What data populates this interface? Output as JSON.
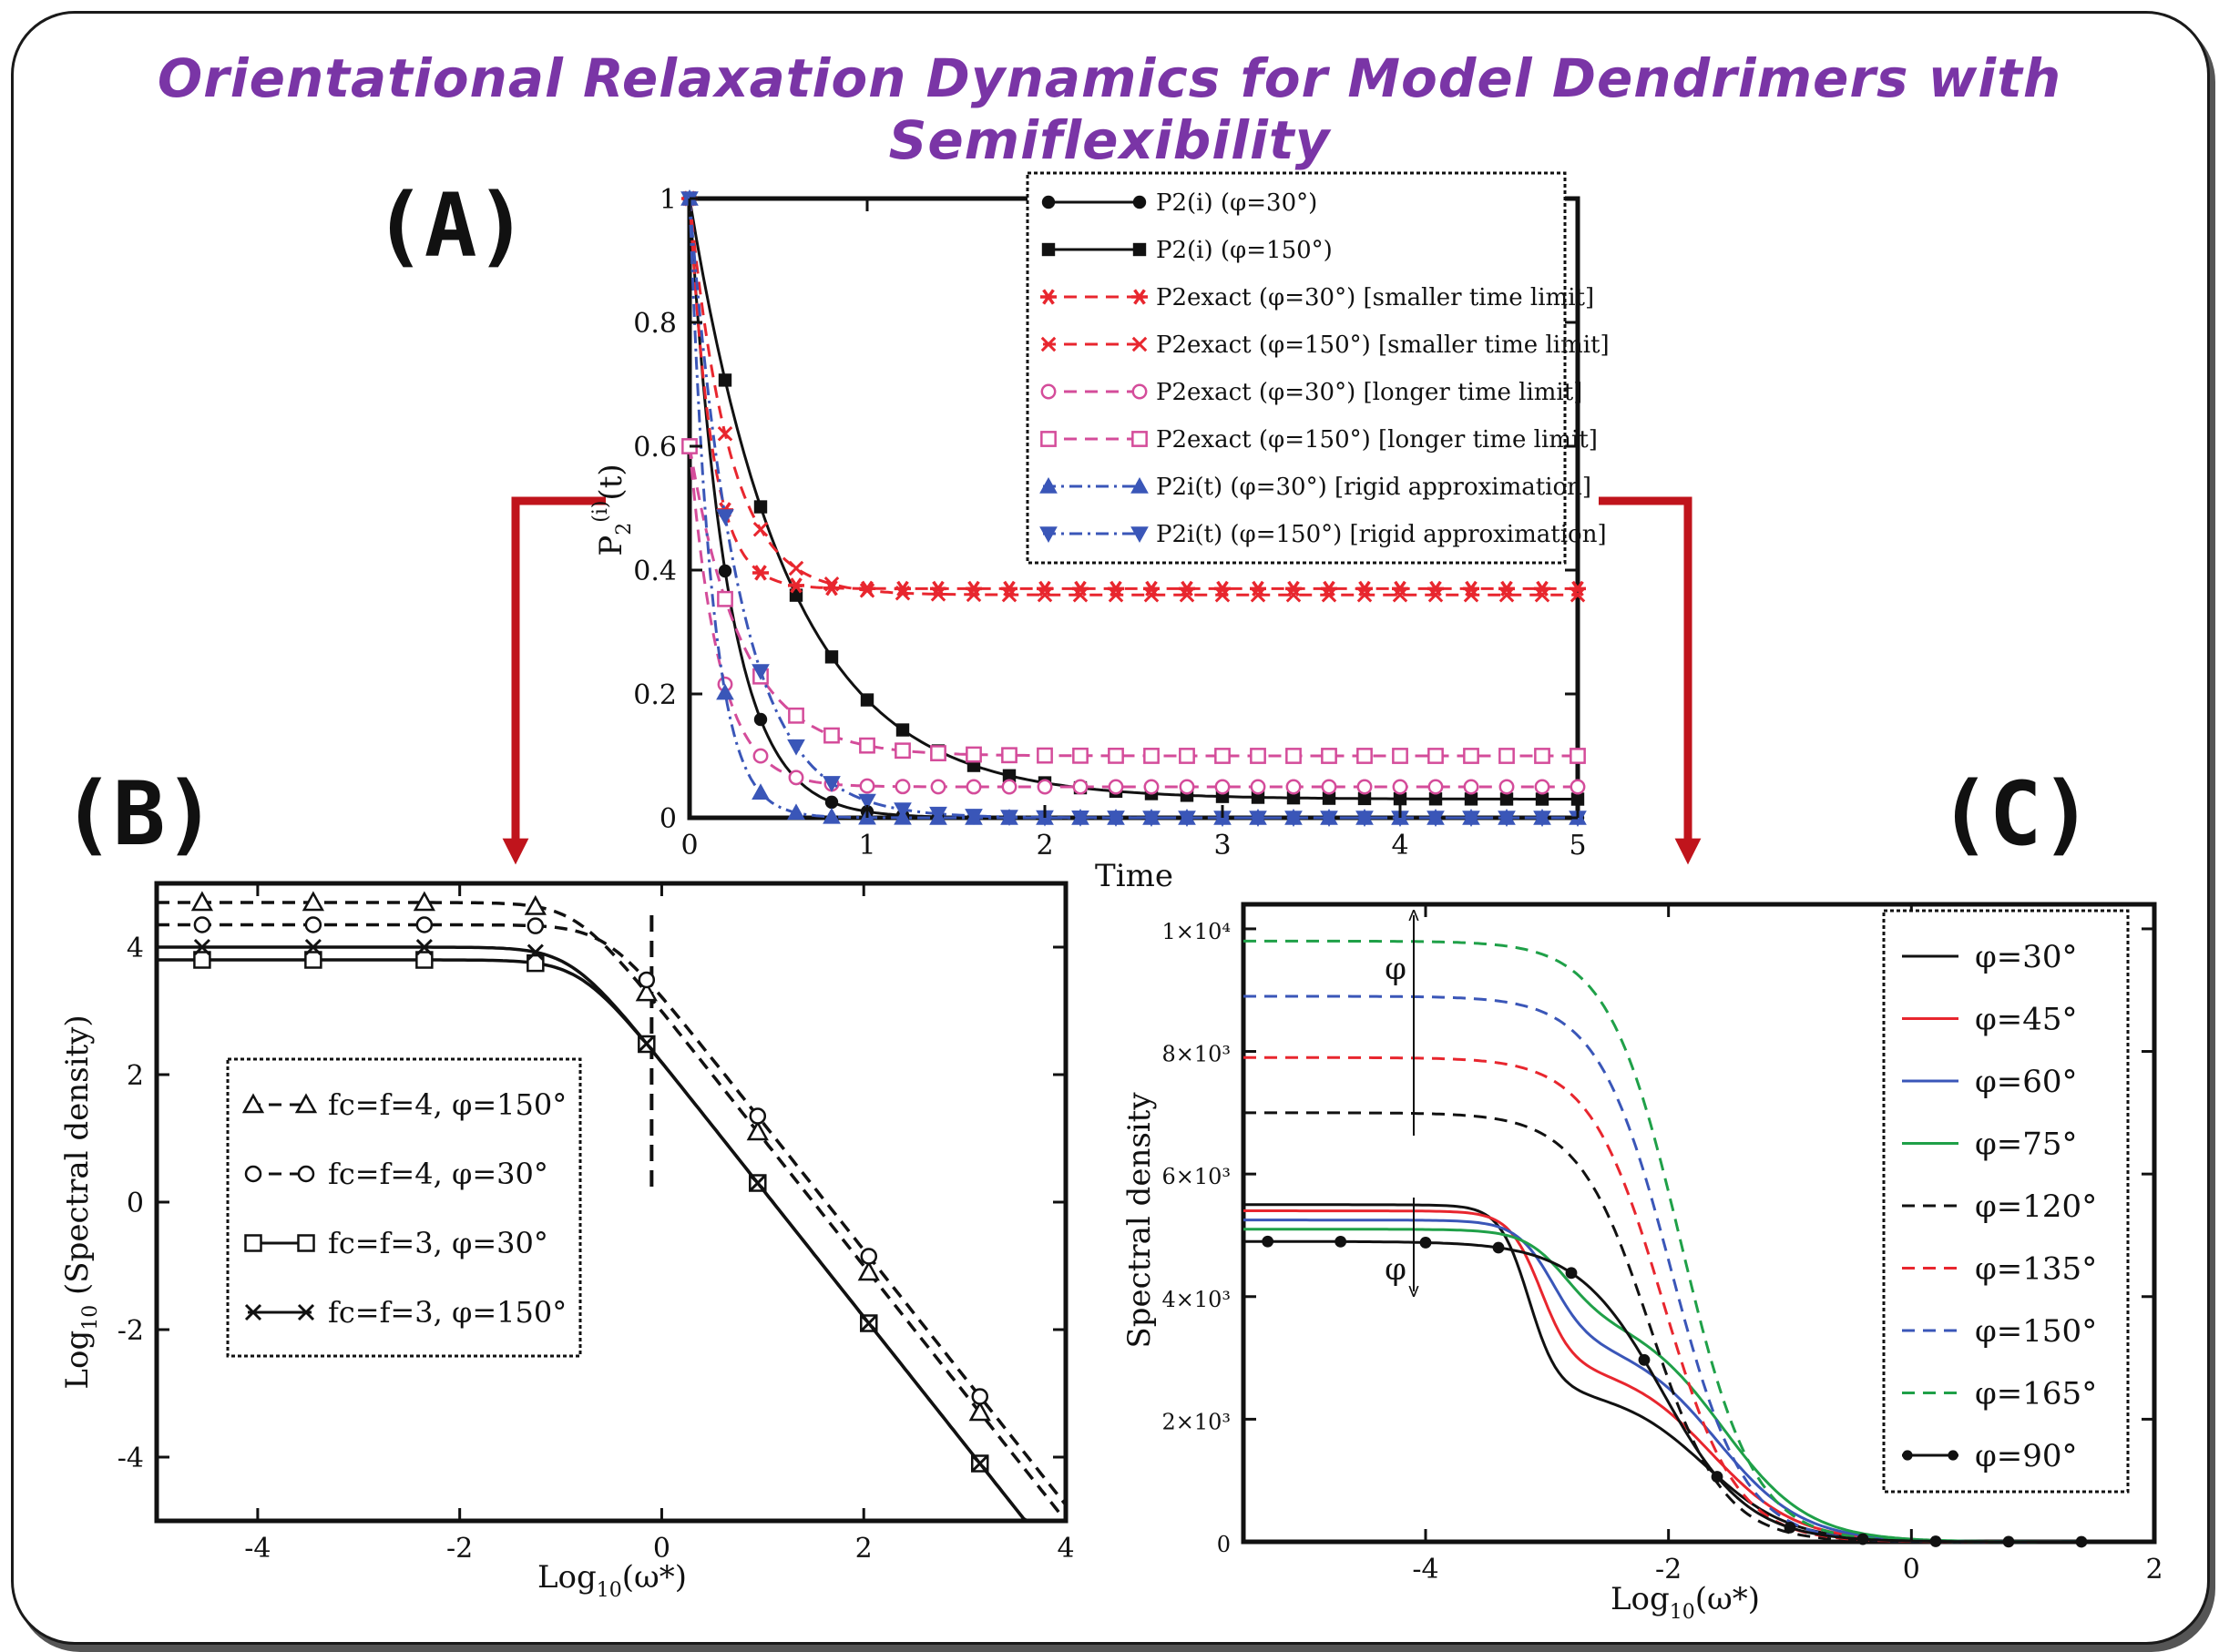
{
  "page_title": "Orientational Relaxation Dynamics for Model Dendrimers with Semiflexibility",
  "labels": {
    "a": "(A)",
    "b": "(B)",
    "c": "(C)"
  },
  "colors": {
    "title": "#7a35a6",
    "arrow": "#c0141c",
    "black": "#111111",
    "red": "#e8262e",
    "pink": "#d44c9a",
    "blue": "#3a56b8",
    "green": "#1fa048"
  },
  "chart_data": [
    {
      "id": "A",
      "type": "line",
      "xlabel": "Time",
      "ylabel": "P2(i)(t)",
      "xlim": [
        0,
        5
      ],
      "ylim": [
        0,
        1
      ],
      "xticks": [
        "0",
        "1",
        "2",
        "3",
        "4",
        "5"
      ],
      "yticks": [
        "0",
        "0.2",
        "0.4",
        "0.6",
        "0.8",
        "1"
      ],
      "series": [
        {
          "name": "P2(i) (φ=30°)",
          "model": "exp",
          "a": 1.0,
          "k": 4.6,
          "c": 0.0,
          "x0": 0.0,
          "color": "black",
          "dash": "solid",
          "marker": "circle"
        },
        {
          "name": "P2(i) (φ=150°)",
          "model": "exp",
          "a": 0.97,
          "k": 1.8,
          "c": 0.03,
          "x0": 0.0,
          "color": "black",
          "dash": "solid",
          "marker": "square"
        },
        {
          "name": "P2exact (φ=30°) [smaller time limit]",
          "model": "exp",
          "a": 0.63,
          "k": 8.0,
          "c": 0.37,
          "x0": 0.0,
          "color": "red",
          "dash": "dash",
          "marker": "asterisk"
        },
        {
          "name": "P2exact (φ=150°) [smaller time limit]",
          "model": "exp",
          "a": 0.64,
          "k": 4.5,
          "c": 0.36,
          "x0": 0.0,
          "color": "red",
          "dash": "dash",
          "marker": "cross"
        },
        {
          "name": "P2exact (φ=30°) [longer time limit]",
          "model": "exp",
          "a": 0.55,
          "k": 6.0,
          "c": 0.05,
          "x0": 0.0,
          "color": "pink",
          "dash": "dash",
          "marker": "circle-open"
        },
        {
          "name": "P2exact (φ=150°) [longer time limit]",
          "model": "exp",
          "a": 0.5,
          "k": 3.4,
          "c": 0.1,
          "x0": 0.0,
          "color": "pink",
          "dash": "dash",
          "marker": "square-open"
        },
        {
          "name": "P2i(t) (φ=30°) [rigid approximation]",
          "model": "exp",
          "a": 1.0,
          "k": 8.0,
          "c": 0.0,
          "x0": 0.0,
          "color": "blue",
          "dash": "dashdot",
          "marker": "tri-up"
        },
        {
          "name": "P2i(t) (φ=150°) [rigid approximation]",
          "model": "exp",
          "a": 1.0,
          "k": 3.6,
          "c": 0.0,
          "x0": 0.0,
          "color": "blue",
          "dash": "dashdot",
          "marker": "tri-down"
        }
      ]
    },
    {
      "id": "B",
      "type": "line",
      "xlabel": "Log10(ω*)",
      "ylabel": "Log10 (Spectral density)",
      "xlim": [
        -5,
        4
      ],
      "ylim": [
        -5,
        5
      ],
      "xticks": [
        "-4",
        "-2",
        "0",
        "2",
        "4"
      ],
      "yticks": [
        "-4",
        "-2",
        "0",
        "2",
        "4"
      ],
      "vline": -0.1,
      "series": [
        {
          "name": "fc=f=4, φ=150°",
          "model": "lorentz",
          "a": 4.7,
          "x0": -0.85,
          "color": "black",
          "dash": "dash",
          "marker": "tri-open"
        },
        {
          "name": "fc=f=4, φ=30°",
          "model": "lorentz",
          "a": 4.35,
          "x0": -0.55,
          "color": "black",
          "dash": "dash",
          "marker": "circle-open"
        },
        {
          "name": "fc=f=3, φ=30°",
          "model": "lorentz",
          "a": 3.8,
          "x0": -0.8,
          "color": "black",
          "dash": "solid",
          "marker": "square-open"
        },
        {
          "name": "fc=f=3, φ=150°",
          "model": "lorentz",
          "a": 4.0,
          "x0": -0.9,
          "color": "black",
          "dash": "solid",
          "marker": "cross"
        }
      ]
    },
    {
      "id": "C",
      "type": "line",
      "xlabel": "Log10(ω*)",
      "ylabel": "Spectral density",
      "xlim": [
        -5.5,
        2
      ],
      "ylim": [
        0,
        10400
      ],
      "xticks": [
        "-4",
        "-2",
        "0",
        "2"
      ],
      "yticks": [
        "0",
        "2×10³",
        "4×10³",
        "6×10³",
        "8×10³",
        "1×10⁴"
      ],
      "annotation": "φ",
      "series": [
        {
          "name": "φ=30°",
          "model": "twostep",
          "a": 5500,
          "b": 2500,
          "x1": -3.15,
          "x2": -1.7,
          "s1": 0.12,
          "s2": 0.35,
          "color": "black",
          "dash": "solid",
          "marker": "none"
        },
        {
          "name": "φ=45°",
          "model": "twostep",
          "a": 5400,
          "b": 2900,
          "x1": -3.05,
          "x2": -1.65,
          "s1": 0.13,
          "s2": 0.35,
          "color": "red",
          "dash": "solid",
          "marker": "none"
        },
        {
          "name": "φ=60°",
          "model": "twostep",
          "a": 5250,
          "b": 3300,
          "x1": -2.95,
          "x2": -1.6,
          "s1": 0.15,
          "s2": 0.35,
          "color": "blue",
          "dash": "solid",
          "marker": "none"
        },
        {
          "name": "φ=75°",
          "model": "twostep",
          "a": 5100,
          "b": 3700,
          "x1": -2.85,
          "x2": -1.55,
          "s1": 0.17,
          "s2": 0.35,
          "color": "green",
          "dash": "solid",
          "marker": "none"
        },
        {
          "name": "φ=120°",
          "model": "logistic",
          "a": 7000,
          "x0": -2.15,
          "s": 0.3,
          "color": "black",
          "dash": "dash",
          "marker": "none"
        },
        {
          "name": "φ=135°",
          "model": "logistic",
          "a": 7900,
          "x0": -2.05,
          "s": 0.3,
          "color": "red",
          "dash": "dash",
          "marker": "none"
        },
        {
          "name": "φ=150°",
          "model": "logistic",
          "a": 8900,
          "x0": -1.98,
          "s": 0.3,
          "color": "blue",
          "dash": "dash",
          "marker": "none"
        },
        {
          "name": "φ=165°",
          "model": "logistic",
          "a": 9800,
          "x0": -1.9,
          "s": 0.3,
          "color": "green",
          "dash": "dash",
          "marker": "none"
        },
        {
          "name": "φ=90°",
          "model": "logistic",
          "a": 4900,
          "x0": -2.05,
          "s": 0.35,
          "color": "black",
          "dash": "solid",
          "marker": "circle",
          "points_x": [
            -5.3,
            -4.7,
            -4.0,
            -3.4,
            -2.8,
            -2.2,
            -1.6,
            -1.0,
            -0.4,
            0.2,
            0.8,
            1.4
          ]
        }
      ]
    }
  ]
}
